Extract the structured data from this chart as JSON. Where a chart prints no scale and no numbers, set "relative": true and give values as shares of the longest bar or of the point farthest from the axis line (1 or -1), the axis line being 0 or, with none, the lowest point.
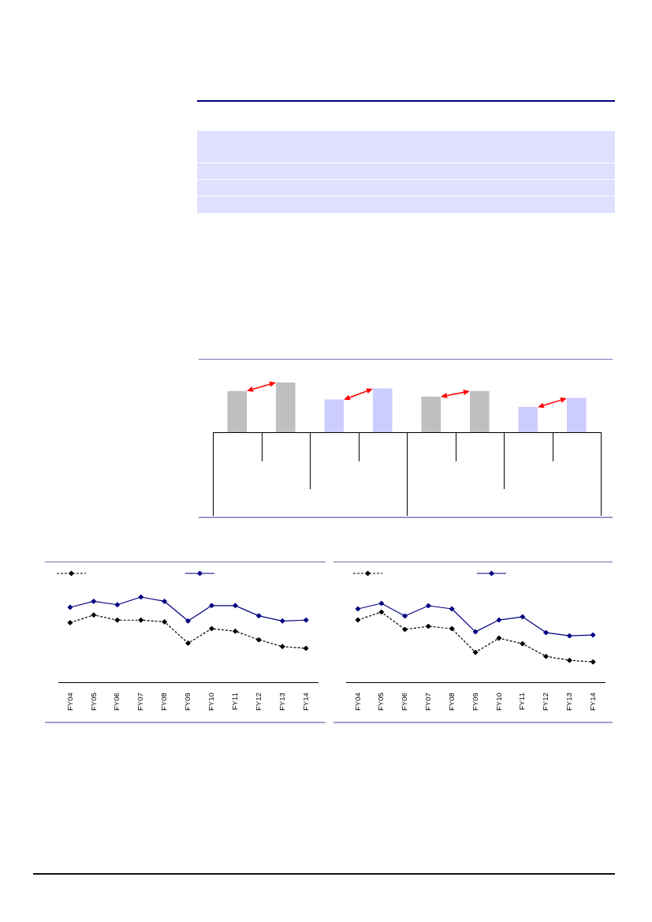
{
  "chart_data": [
    {
      "type": "bar",
      "categories": [
        null,
        null,
        null,
        null,
        null,
        null,
        null,
        null
      ],
      "values": [
        0.83,
        1,
        0.66,
        0.88,
        0.72,
        0.83,
        0.51,
        0.69
      ],
      "colors": [
        "#bfbfbf",
        "#bfbfbf",
        "#ccccff",
        "#ccccff",
        "#bfbfbf",
        "#bfbfbf",
        "#ccccff",
        "#ccccff"
      ],
      "relative": true
    },
    {
      "type": "line",
      "categories": [
        "FY04",
        "FY05",
        "FY06",
        "FY07",
        "FY08",
        "FY09",
        "FY10",
        "FY11",
        "FY12",
        "FY13",
        "FY14"
      ],
      "series": [
        {
          "color": "#000000",
          "line_style": "dashed",
          "values": [
            0.7,
            0.79,
            0.73,
            0.73,
            0.71,
            0.46,
            0.63,
            0.6,
            0.5,
            0.42,
            0.4
          ]
        },
        {
          "color": "#000080",
          "line_style": "solid",
          "values": [
            0.88,
            0.95,
            0.91,
            1.0,
            0.95,
            0.72,
            0.9,
            0.9,
            0.78,
            0.72,
            0.73
          ]
        }
      ],
      "relative": true,
      "marker": "diamond",
      "tick_labels": "x"
    },
    {
      "type": "line",
      "categories": [
        "FY04",
        "FY05",
        "FY06",
        "FY07",
        "FY08",
        "FY09",
        "FY10",
        "FY11",
        "FY12",
        "FY13",
        "FY14"
      ],
      "series": [
        {
          "color": "#000000",
          "line_style": "dashed",
          "values": [
            0.79,
            0.89,
            0.67,
            0.71,
            0.68,
            0.38,
            0.56,
            0.49,
            0.33,
            0.28,
            0.26
          ]
        },
        {
          "color": "#000080",
          "line_style": "solid",
          "values": [
            0.93,
            1.0,
            0.84,
            0.97,
            0.93,
            0.64,
            0.79,
            0.83,
            0.63,
            0.59,
            0.6
          ]
        }
      ],
      "relative": true,
      "marker": "diamond",
      "tick_labels": "x"
    }
  ]
}
